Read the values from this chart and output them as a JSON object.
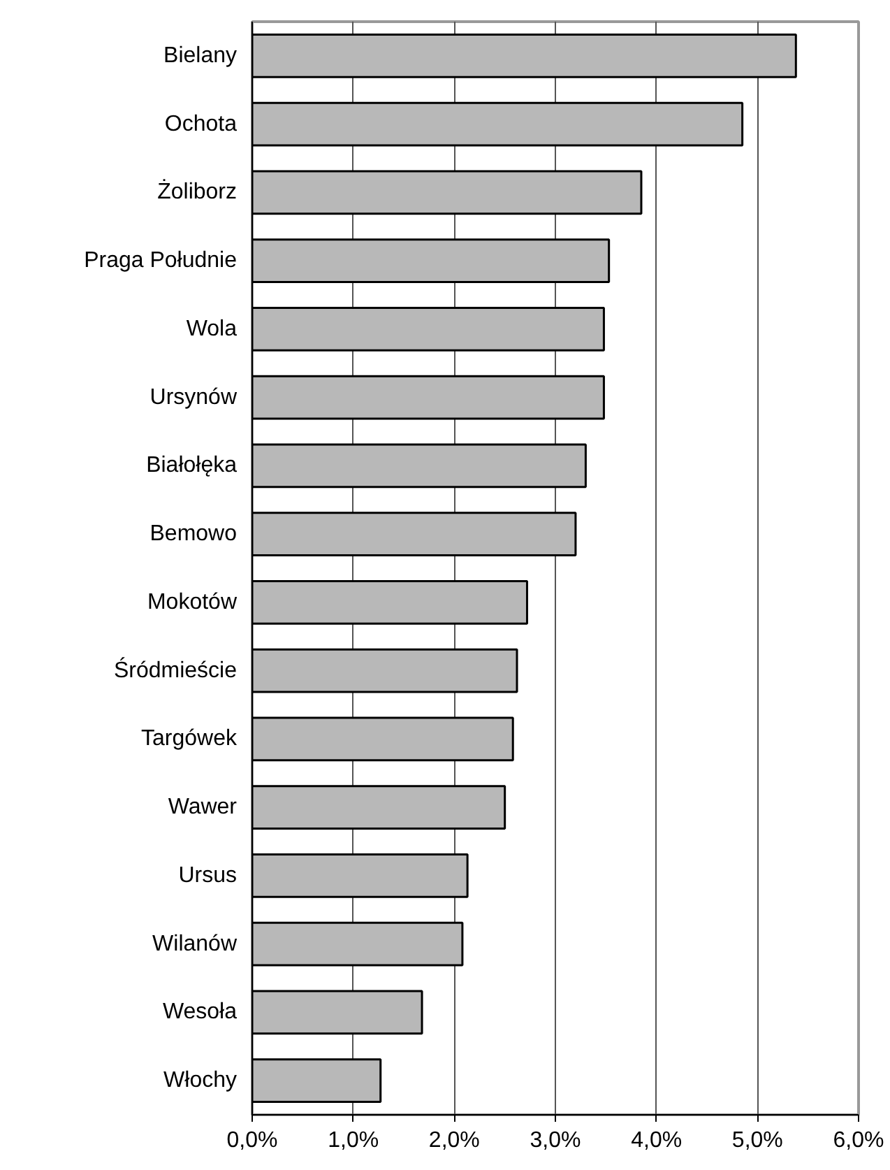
{
  "chart_data": {
    "type": "bar",
    "orientation": "horizontal",
    "categories": [
      "Bielany",
      "Ochota",
      "Żoliborz",
      "Praga Południe",
      "Wola",
      "Ursynów",
      "Białołęka",
      "Bemowo",
      "Mokotów",
      "Śródmieście",
      "Targówek",
      "Wawer",
      "Ursus",
      "Wilanów",
      "Wesoła",
      "Włochy"
    ],
    "values": [
      5.38,
      4.85,
      3.85,
      3.53,
      3.48,
      3.48,
      3.3,
      3.2,
      2.72,
      2.62,
      2.58,
      2.5,
      2.13,
      2.08,
      1.68,
      1.27
    ],
    "color": "#b8b8b8",
    "xlim": [
      0,
      6
    ],
    "xticks": [
      {
        "value": 0,
        "label": "0,0%"
      },
      {
        "value": 1,
        "label": "1,0%"
      },
      {
        "value": 2,
        "label": "2,0%"
      },
      {
        "value": 3,
        "label": "3,0%"
      },
      {
        "value": 4,
        "label": "4,0%"
      },
      {
        "value": 5,
        "label": "5,0%"
      },
      {
        "value": 6,
        "label": "6,0%"
      }
    ],
    "grid": "x"
  }
}
